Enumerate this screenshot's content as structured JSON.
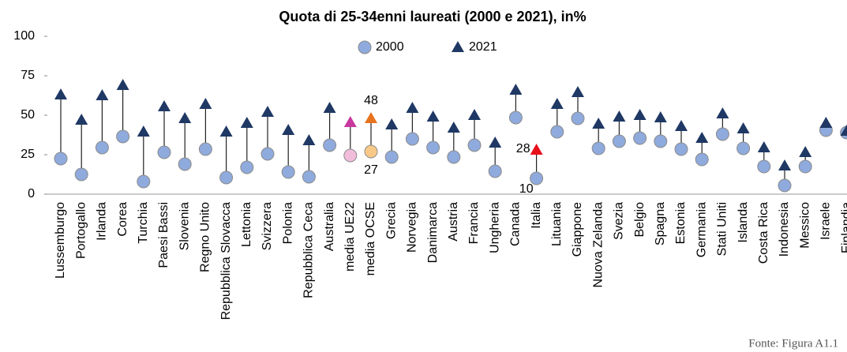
{
  "chart_data": {
    "type": "dot_range",
    "title": "Quota di 25-34enni laureati (2000 e 2021), in%",
    "source": "Fonte: Figura A1.1",
    "categories": [
      "Lussemburgo",
      "Portogallo",
      "Irlanda",
      "Corea",
      "Turchia",
      "Paesi Bassi",
      "Slovenia",
      "Regno Unito",
      "Repubblica Slovacca",
      "Lettonia",
      "Svizzera",
      "Polonia",
      "Repubblica Ceca",
      "Australia",
      "media UE22",
      "media OCSE",
      "Grecia",
      "Norvegia",
      "Danimarca",
      "Austria",
      "Francia",
      "Ungheria",
      "Canada",
      "Italia",
      "Lituania",
      "Giappone",
      "Nuova Zelanda",
      "Svezia",
      "Belgio",
      "Spagna",
      "Estonia",
      "Germania",
      "Stati Uniti",
      "Islanda",
      "Costa Rica",
      "Indonesia",
      "Messico",
      "Israele",
      "Finlandia"
    ],
    "series": [
      {
        "name": "2000",
        "marker": "circle",
        "color": "#8faadc",
        "values": [
          22.5,
          12.5,
          29.5,
          36.5,
          8,
          26.5,
          19,
          28.5,
          10.5,
          17,
          25.5,
          14,
          11,
          31,
          24.5,
          27,
          23.5,
          35,
          29.5,
          23.5,
          31,
          14.5,
          48.5,
          10,
          39.5,
          48,
          29,
          33.5,
          35.5,
          33.5,
          28.5,
          22,
          38,
          29,
          17.5,
          5.5,
          17.5,
          40.5,
          39
        ],
        "point_colors": {
          "media UE22": "#f2bddb",
          "media OCSE": "#f8c987"
        }
      },
      {
        "name": "2021",
        "marker": "triangle",
        "color": "#1f3864",
        "values": [
          63,
          47,
          62.5,
          69,
          39.5,
          55.5,
          48,
          57,
          39.5,
          45,
          52,
          40.5,
          34,
          54.5,
          45.5,
          48,
          44,
          54.5,
          49,
          42,
          50,
          32.5,
          66,
          28,
          57,
          64.5,
          44.5,
          49,
          50,
          48.5,
          43,
          35.5,
          51,
          41.5,
          29.5,
          18,
          26.5,
          45,
          40
        ],
        "point_colors": {
          "media UE22": "#c8389f",
          "media OCSE": "#e8731e",
          "Italia": "#e8101a"
        }
      }
    ],
    "data_labels": [
      "media OCSE",
      "Italia"
    ],
    "ylim": [
      0,
      100
    ],
    "yticks": [
      0,
      25,
      50,
      75,
      100
    ],
    "grid": false
  }
}
